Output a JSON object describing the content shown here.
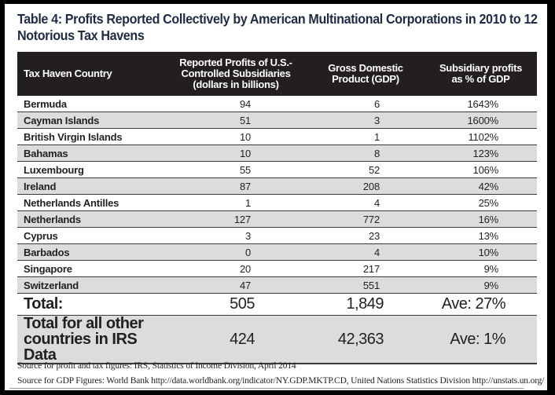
{
  "title": "Table 4: Profits Reported Collectively by American Multinational Corporations in 2010 to 12 Notorious Tax Havens",
  "table": {
    "headers": [
      "Tax Haven Country",
      "Reported Profits of U.S.-Controlled Subsidiaries (dollars in billions)",
      "Gross Domestic Product (GDP)",
      "Subsidiary profits as % of GDP"
    ],
    "header_lines": {
      "c1": [
        "Reported Profits of U.S.-",
        "Controlled Subsidiaries",
        "(dollars in billions)"
      ],
      "c2": [
        "Gross Domestic",
        "Product (GDP)"
      ],
      "c3": [
        "Subsidiary profits",
        "as % of GDP"
      ]
    },
    "rows": [
      {
        "country": "Bermuda",
        "profits": "94",
        "gdp": "6",
        "pct": "1643%"
      },
      {
        "country": "Cayman Islands",
        "profits": "51",
        "gdp": "3",
        "pct": "1600%"
      },
      {
        "country": "British Virgin Islands",
        "profits": "10",
        "gdp": "1",
        "pct": "1102%"
      },
      {
        "country": "Bahamas",
        "profits": "10",
        "gdp": "8",
        "pct": "123%"
      },
      {
        "country": "Luxembourg",
        "profits": "55",
        "gdp": "52",
        "pct": "106%"
      },
      {
        "country": "Ireland",
        "profits": "87",
        "gdp": "208",
        "pct": "42%"
      },
      {
        "country": "Netherlands Antilles",
        "profits": "1",
        "gdp": "4",
        "pct": "25%"
      },
      {
        "country": "Netherlands",
        "profits": "127",
        "gdp": "772",
        "pct": "16%"
      },
      {
        "country": "Cyprus",
        "profits": "3",
        "gdp": "23",
        "pct": "13%"
      },
      {
        "country": "Barbados",
        "profits": "0",
        "gdp": "4",
        "pct": "10%"
      },
      {
        "country": "Singapore",
        "profits": "20",
        "gdp": "217",
        "pct": "9%"
      },
      {
        "country": "Switzerland",
        "profits": "47",
        "gdp": "551",
        "pct": "9%"
      }
    ],
    "total": {
      "label": "Total:",
      "profits": "505",
      "gdp": "1,849",
      "pct": "Ave: 27%"
    },
    "other": {
      "label_lines": [
        "Total for all other",
        "countries in IRS Data"
      ],
      "profits": "424",
      "gdp": "42,363",
      "pct": "Ave: 1%"
    }
  },
  "sources": [
    "Source for profit and tax figures: IRS, Statistics of Income Division, April 2014",
    "Source for GDP Figures: World Bank http://data.worldbank.org/indicator/NY.GDP.MKTP.CD, United Nations Statistics Division http://unstats.un.org/"
  ],
  "colors": {
    "header_bg": "#231f20",
    "alt_row_bg": "#dcdcde",
    "title_color": "#1f2a44"
  },
  "chart_data": {
    "type": "table",
    "title": "Table 4: Profits Reported Collectively by American Multinational Corporations in 2010 to 12 Notorious Tax Havens",
    "columns": [
      "Tax Haven Country",
      "Reported Profits of U.S.-Controlled Subsidiaries (dollars in billions)",
      "Gross Domestic Product (GDP)",
      "Subsidiary profits as % of GDP"
    ],
    "rows": [
      [
        "Bermuda",
        94,
        6,
        "1643%"
      ],
      [
        "Cayman Islands",
        51,
        3,
        "1600%"
      ],
      [
        "British Virgin Islands",
        10,
        1,
        "1102%"
      ],
      [
        "Bahamas",
        10,
        8,
        "123%"
      ],
      [
        "Luxembourg",
        55,
        52,
        "106%"
      ],
      [
        "Ireland",
        87,
        208,
        "42%"
      ],
      [
        "Netherlands Antilles",
        1,
        4,
        "25%"
      ],
      [
        "Netherlands",
        127,
        772,
        "16%"
      ],
      [
        "Cyprus",
        3,
        23,
        "13%"
      ],
      [
        "Barbados",
        0,
        4,
        "10%"
      ],
      [
        "Singapore",
        20,
        217,
        "9%"
      ],
      [
        "Switzerland",
        47,
        551,
        "9%"
      ],
      [
        "Total:",
        505,
        1849,
        "Ave: 27%"
      ],
      [
        "Total for all other countries in IRS Data",
        424,
        42363,
        "Ave: 1%"
      ]
    ]
  }
}
